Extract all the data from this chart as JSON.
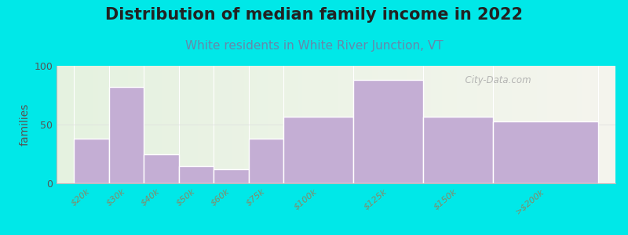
{
  "title": "Distribution of median family income in 2022",
  "subtitle": "White residents in White River Junction, VT",
  "categories": [
    "$20k",
    "$30k",
    "$40k",
    "$50k",
    "$60k",
    "$75k",
    "$100k",
    "$125k",
    "$150k",
    ">$200k"
  ],
  "values": [
    38,
    82,
    25,
    15,
    12,
    38,
    57,
    88,
    57,
    53
  ],
  "bar_color": "#c4aed4",
  "bar_edge_color": "#ffffff",
  "background_outer": "#00e8e8",
  "ylabel": "families",
  "ylim": [
    0,
    100
  ],
  "yticks": [
    0,
    50,
    100
  ],
  "title_fontsize": 15,
  "subtitle_fontsize": 11,
  "subtitle_color": "#6688aa",
  "watermark": "  City-Data.com",
  "watermark_color": "#aaaaaa",
  "tick_color": "#888866",
  "bar_widths": [
    1,
    1,
    1,
    1,
    1,
    1,
    2,
    2,
    2,
    3
  ],
  "bar_lefts": [
    0,
    1,
    2,
    3,
    4,
    5,
    6,
    8,
    10,
    12
  ]
}
